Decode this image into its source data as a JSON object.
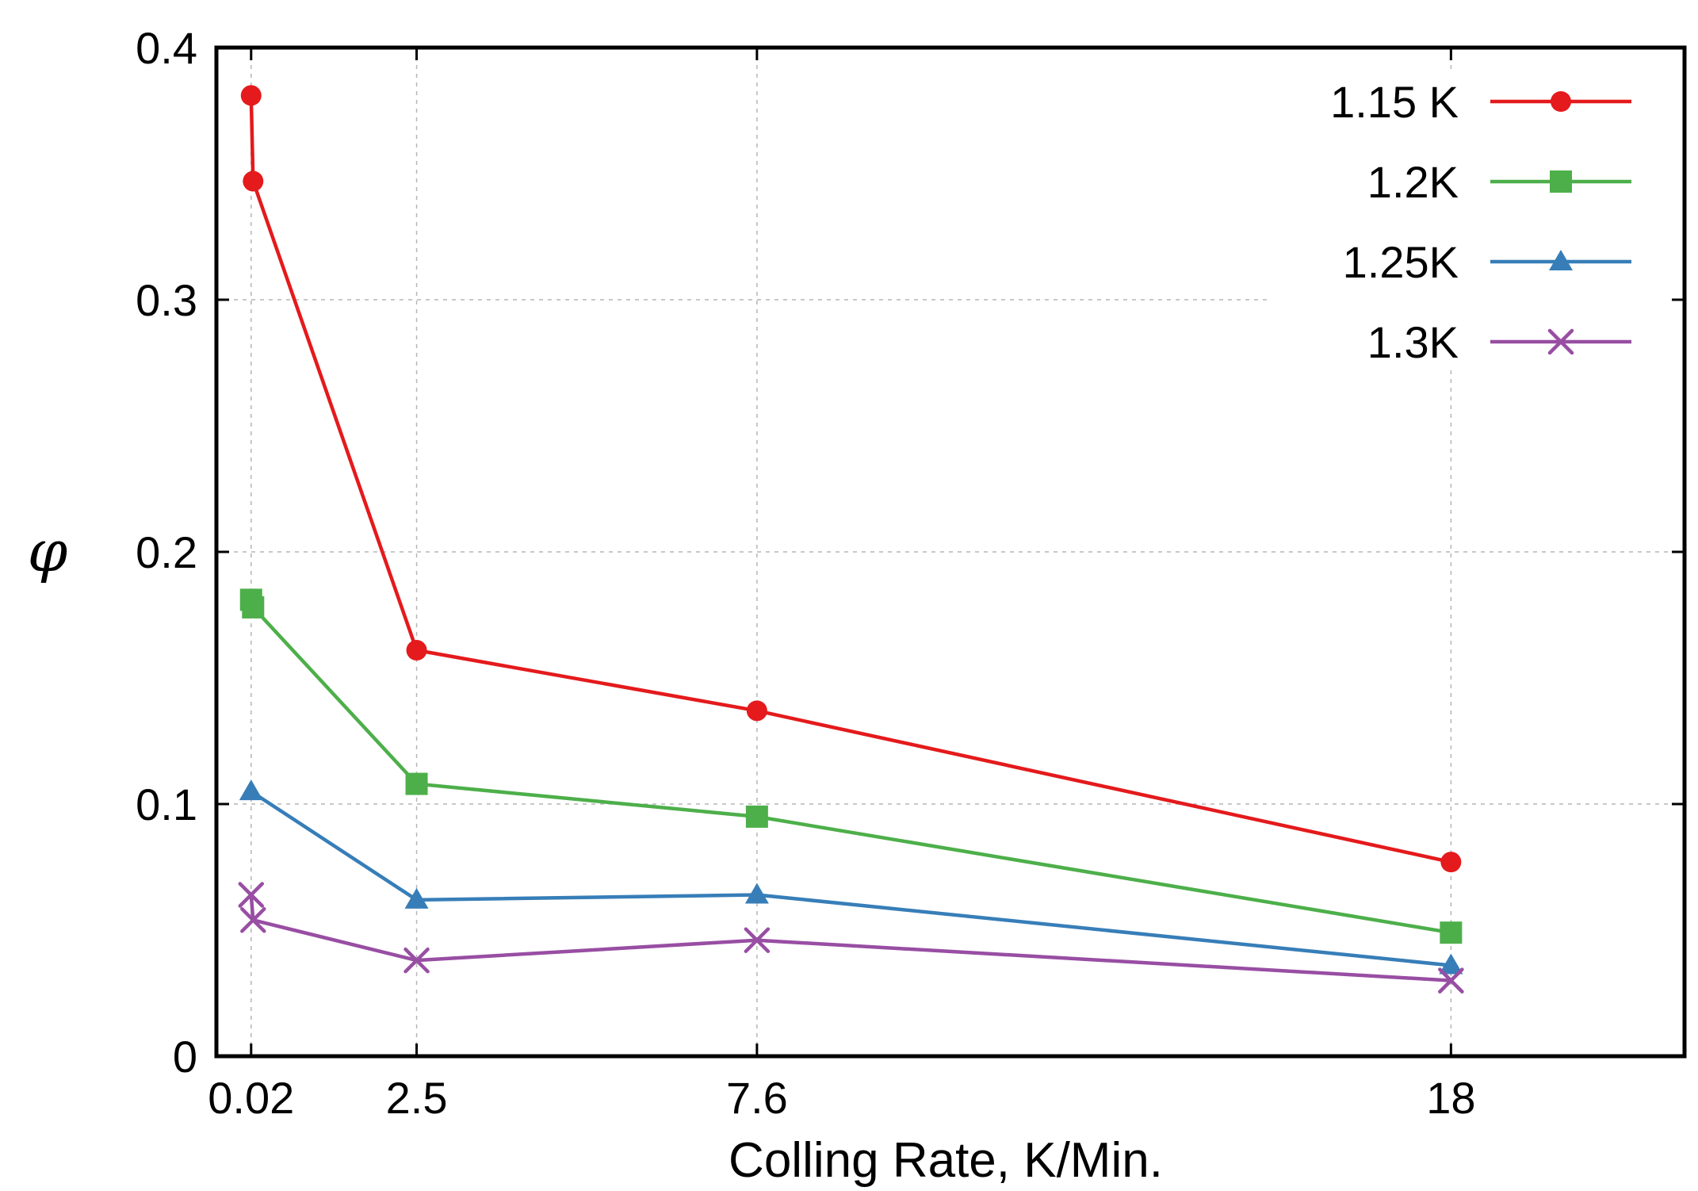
{
  "chart_data": {
    "type": "line",
    "title": "",
    "xlabel": "Colling Rate, K/Min.",
    "ylabel": "φ",
    "xlim": [
      -0.5,
      21.5
    ],
    "ylim": [
      0,
      0.4
    ],
    "x_ticks": [
      0.02,
      2.5,
      7.6,
      18
    ],
    "x_tick_labels": [
      "0.02",
      "2.5",
      "7.6",
      "18"
    ],
    "y_ticks": [
      0,
      0.1,
      0.2,
      0.3,
      0.4
    ],
    "y_tick_labels": [
      "0",
      "0.1",
      "0.2",
      "0.3",
      "0.4"
    ],
    "grid": true,
    "legend_position": "top-right",
    "series": [
      {
        "name": "1.15 K",
        "color": "#e41a1c",
        "marker": "circle",
        "points": [
          [
            0.02,
            0.381
          ],
          [
            0.05,
            0.347
          ],
          [
            2.5,
            0.161
          ],
          [
            7.6,
            0.137
          ],
          [
            18,
            0.077
          ]
        ]
      },
      {
        "name": "1.2K",
        "color": "#4daf4a",
        "marker": "square",
        "points": [
          [
            0.02,
            0.181
          ],
          [
            0.05,
            0.178
          ],
          [
            2.5,
            0.108
          ],
          [
            7.6,
            0.095
          ],
          [
            18,
            0.049
          ]
        ]
      },
      {
        "name": "1.25K",
        "color": "#377eb8",
        "marker": "triangle",
        "points": [
          [
            0.02,
            0.105
          ],
          [
            2.5,
            0.062
          ],
          [
            7.6,
            0.064
          ],
          [
            18,
            0.036
          ]
        ]
      },
      {
        "name": "1.3K",
        "color": "#984ea3",
        "marker": "x",
        "points": [
          [
            0.02,
            0.064
          ],
          [
            0.05,
            0.054
          ],
          [
            2.5,
            0.038
          ],
          [
            7.6,
            0.046
          ],
          [
            18,
            0.03
          ]
        ]
      }
    ]
  }
}
